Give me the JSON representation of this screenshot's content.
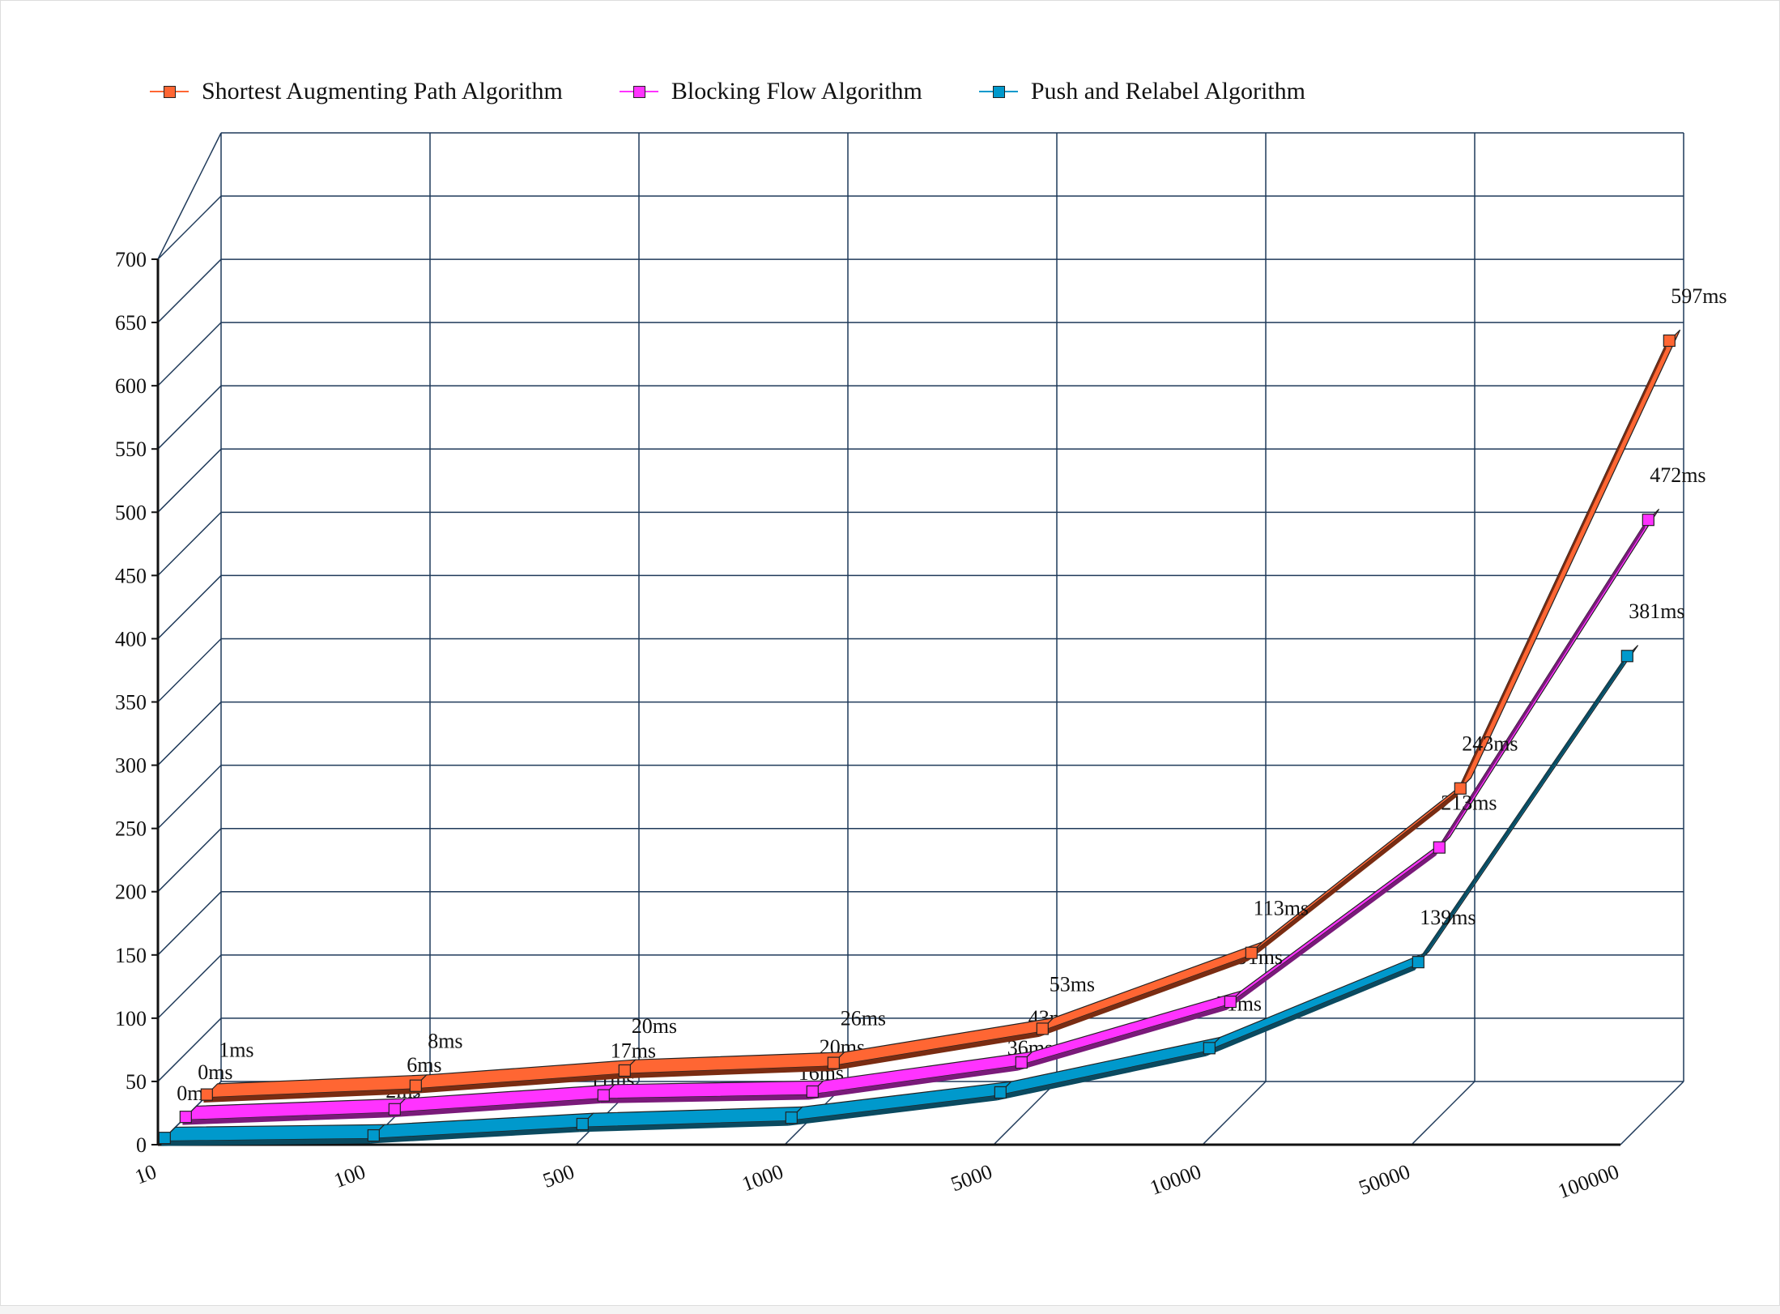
{
  "chart_data": {
    "type": "line",
    "style": "3d",
    "categories": [
      "10",
      "100",
      "500",
      "1000",
      "5000",
      "10000",
      "50000",
      "100000"
    ],
    "ylim": [
      0,
      700
    ],
    "yticks": [
      "0",
      "50",
      "100",
      "150",
      "200",
      "250",
      "300",
      "350",
      "400",
      "450",
      "500",
      "550",
      "600",
      "650",
      "700"
    ],
    "grid": true,
    "legend_position": "top-left",
    "series": [
      {
        "name": "Shortest Augmenting Path Algorithm",
        "values": [
          1,
          8,
          20,
          26,
          53,
          113,
          243,
          597
        ],
        "labels": [
          "1ms",
          "8ms",
          "20ms",
          "26ms",
          "53ms",
          "113ms",
          "243ms",
          "597ms"
        ],
        "color": "#ff6633",
        "side_color": "#7a2c12"
      },
      {
        "name": "Blocking Flow Algorithm",
        "values": [
          0,
          6,
          17,
          20,
          43,
          91,
          213,
          472
        ],
        "labels": [
          "0ms",
          "6ms",
          "17ms",
          "20ms",
          "43ms",
          "91ms",
          "213ms",
          "472ms"
        ],
        "color": "#ff33ff",
        "side_color": "#7a1a7a"
      },
      {
        "name": "Push and Relabel Algorithm",
        "values": [
          0,
          2,
          11,
          16,
          36,
          71,
          139,
          381
        ],
        "labels": [
          "0ms",
          "2ms",
          "11ms",
          "16ms",
          "36ms",
          "71ms",
          "139ms",
          "381ms"
        ],
        "color": "#0099cc",
        "side_color": "#0a4a60"
      }
    ]
  }
}
